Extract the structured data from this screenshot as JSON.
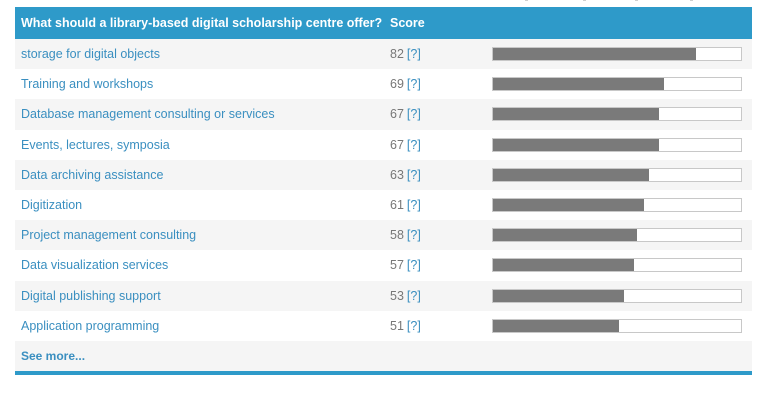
{
  "header": {
    "question": "What should a library-based digital scholarship centre offer?",
    "score_label": "Score"
  },
  "rows": [
    {
      "idea": "storage for digital objects",
      "score": "82",
      "help": "[?]",
      "value": 82
    },
    {
      "idea": "Training and workshops",
      "score": "69",
      "help": "[?]",
      "value": 69
    },
    {
      "idea": "Database management consulting or services",
      "score": "67",
      "help": "[?]",
      "value": 67
    },
    {
      "idea": "Events, lectures, symposia",
      "score": "67",
      "help": "[?]",
      "value": 67
    },
    {
      "idea": "Data archiving assistance",
      "score": "63",
      "help": "[?]",
      "value": 63
    },
    {
      "idea": "Digitization",
      "score": "61",
      "help": "[?]",
      "value": 61
    },
    {
      "idea": "Project management consulting",
      "score": "58",
      "help": "[?]",
      "value": 58
    },
    {
      "idea": "Data visualization services",
      "score": "57",
      "help": "[?]",
      "value": 57
    },
    {
      "idea": "Digital publishing support",
      "score": "53",
      "help": "[?]",
      "value": 53
    },
    {
      "idea": "Application programming",
      "score": "51",
      "help": "[?]",
      "value": 51
    }
  ],
  "see_more": "See more...",
  "colors": {
    "accent": "#2e9ac9",
    "link": "#3a8fc0",
    "bar": "#7a7a7a"
  }
}
